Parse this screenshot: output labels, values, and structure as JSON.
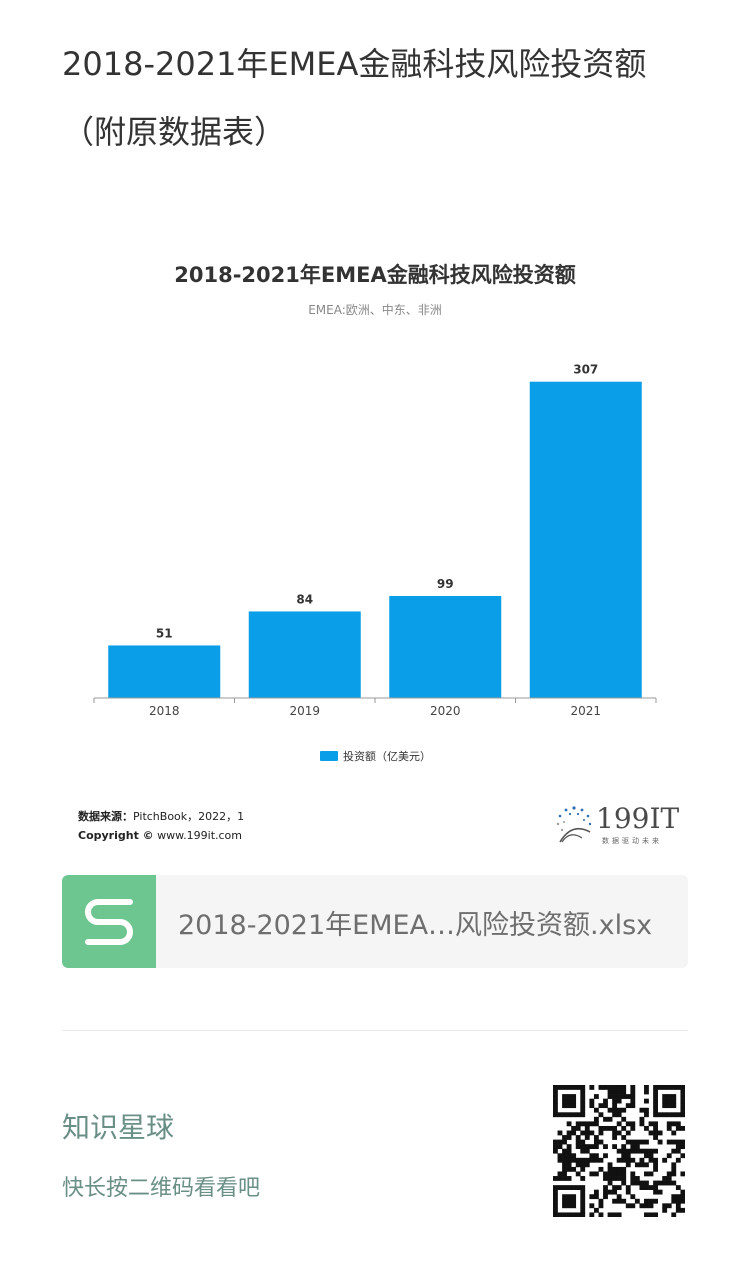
{
  "page": {
    "title": "2018-2021年EMEA金融科技风险投资额（附原数据表）"
  },
  "chart_data": {
    "type": "bar",
    "title": "2018-2021年EMEA金融科技风险投资额",
    "subtitle": "EMEA:欧洲、中东、非洲",
    "categories": [
      "2018",
      "2019",
      "2020",
      "2021"
    ],
    "series": [
      {
        "name": "投资额（亿美元）",
        "values": [
          51,
          84,
          99,
          307
        ],
        "color": "#0a9ee8"
      }
    ],
    "ylim": [
      0,
      330
    ],
    "grid": false,
    "legend": "bottom-center",
    "source_label": "数据来源：",
    "source_text": "PitchBook，2022，1",
    "copyright_label": "Copyright ©",
    "copyright_text": " www.199it.com"
  },
  "logo": {
    "text": "199IT",
    "sub": "数据驱动未来"
  },
  "file": {
    "name": "2018-2021年EMEA…风险投资额.xlsx",
    "icon": "spreadsheet-s-icon",
    "icon_color": "#6dc58f"
  },
  "qr": {
    "title": "知识星球",
    "subtitle": "快长按二维码看看吧",
    "icon": "qr-code-icon"
  }
}
